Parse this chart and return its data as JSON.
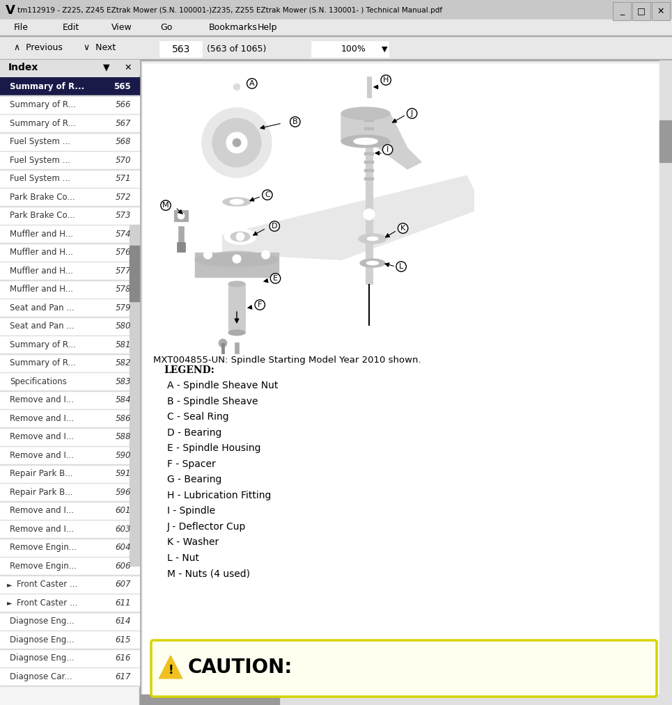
{
  "title_bar": "tm112919 - Z225, Z245 EZtrak Mower (S.N. 100001-)Z235, Z255 EZtrak Mower (S.N. 130001- ) Technical Manual.pdf",
  "menu_items": [
    "File",
    "Edit",
    "View",
    "Go",
    "Bookmarks",
    "Help"
  ],
  "page_number": "563",
  "page_info": "(563 of 1065)",
  "zoom_level": "100%",
  "index_title": "Index",
  "index_items": [
    [
      "Summary of R...",
      "565"
    ],
    [
      "Summary of R...",
      "566"
    ],
    [
      "Summary of R...",
      "567"
    ],
    [
      "Fuel System ...",
      "568"
    ],
    [
      "Fuel System ...",
      "570"
    ],
    [
      "Fuel System ...",
      "571"
    ],
    [
      "Park Brake Co...",
      "572"
    ],
    [
      "Park Brake Co...",
      "573"
    ],
    [
      "Muffler and H...",
      "574"
    ],
    [
      "Muffler and H...",
      "576"
    ],
    [
      "Muffler and H...",
      "577"
    ],
    [
      "Muffler and H...",
      "578"
    ],
    [
      "Seat and Pan ...",
      "579"
    ],
    [
      "Seat and Pan ...",
      "580"
    ],
    [
      "Summary of R...",
      "581"
    ],
    [
      "Summary of R...",
      "582"
    ],
    [
      "Specifications",
      "583"
    ],
    [
      "Remove and I...",
      "584"
    ],
    [
      "Remove and I...",
      "586"
    ],
    [
      "Remove and I...",
      "588"
    ],
    [
      "Remove and I...",
      "590"
    ],
    [
      "Repair Park B...",
      "591"
    ],
    [
      "Repair Park B...",
      "596"
    ],
    [
      "Remove and I...",
      "601"
    ],
    [
      "Remove and I...",
      "603"
    ],
    [
      "Remove Engin...",
      "604"
    ],
    [
      "Remove Engin...",
      "606"
    ],
    [
      "Front Caster ...",
      "607"
    ],
    [
      "Front Caster ...",
      "611"
    ],
    [
      "Diagnose Eng...",
      "614"
    ],
    [
      "Diagnose Eng...",
      "615"
    ],
    [
      "Diagnose Eng...",
      "616"
    ],
    [
      "Diagnose Car...",
      "617"
    ]
  ],
  "index_arrows": [
    27,
    28
  ],
  "diagram_caption": "MXT004855-UN: Spindle Starting Model Year 2010 shown.",
  "legend_title": "LEGEND:",
  "legend_items": [
    "A - Spindle Sheave Nut",
    "B - Spindle Sheave",
    "C - Seal Ring",
    "D - Bearing",
    "E - Spindle Housing",
    "F - Spacer",
    "G - Bearing",
    "H - Lubrication Fitting",
    "I - Spindle",
    "J - Deflector Cup",
    "K - Washer",
    "L - Nut",
    "M - Nuts (4 used)"
  ],
  "caution_text": "CAUTION:",
  "bg_color": "#f0f0f0",
  "white": "#ffffff",
  "black": "#000000",
  "sidebar_bg": "#ffffff",
  "selected_row_bg": "#1a1a4a",
  "selected_row_fg": "#ffffff",
  "index_row_fg": "#333333",
  "caution_bg": "#fffff0",
  "caution_border": "#cccc00",
  "diagram_border": "#2d8a2d",
  "title_bar_bg": "#c0c0c0",
  "menu_bar_bg": "#e8e8e8",
  "toolbar_bg": "#e8e8e8"
}
